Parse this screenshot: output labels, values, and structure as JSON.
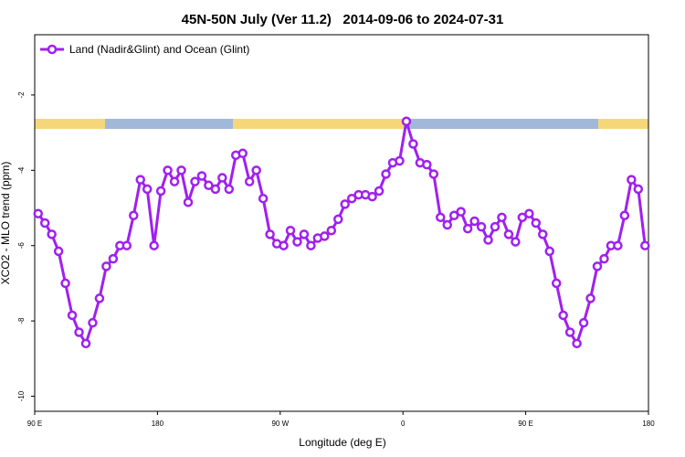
{
  "chart_data": {
    "type": "line",
    "title": "45N-50N July (Ver 11.2)   2014-09-06 to 2024-07-31",
    "x_label": "Longitude (deg E)",
    "y_label": "XCO2 - MLO trend (ppm)",
    "x": [
      92.5,
      97.5,
      102.5,
      107.5,
      112.5,
      117.5,
      122.5,
      127.5,
      132.5,
      137.5,
      142.5,
      147.5,
      152.5,
      157.5,
      162.5,
      167.5,
      172.5,
      177.5,
      182.5,
      187.5,
      192.5,
      197.5,
      202.5,
      207.5,
      212.5,
      217.5,
      222.5,
      227.5,
      232.5,
      237.5,
      242.5,
      247.5,
      252.5,
      257.5,
      262.5,
      267.5,
      272.5,
      277.5,
      282.5,
      287.5,
      292.5,
      297.5,
      302.5,
      307.5,
      312.5,
      317.5,
      322.5,
      327.5,
      332.5,
      337.5,
      342.5,
      347.5,
      352.5,
      357.5,
      362.5,
      367.5,
      372.5,
      377.5,
      382.5,
      387.5,
      392.5,
      397.5,
      402.5,
      407.5,
      412.5,
      417.5,
      422.5,
      427.5,
      432.5,
      437.5,
      442.5,
      447.5,
      452.5,
      457.5,
      462.5,
      467.5,
      472.5,
      477.5,
      482.5,
      487.5,
      492.5,
      497.5,
      502.5,
      507.5,
      512.5,
      517.5,
      522.5,
      527.5,
      532.5,
      537.5
    ],
    "series": [
      {
        "name": "Land (Nadir&Glint) and Ocean (Glint)",
        "color": "#a020f0",
        "values": [
          -5.15,
          -5.4,
          -5.7,
          -6.15,
          -7.0,
          -7.85,
          -8.3,
          -8.6,
          -8.05,
          -7.4,
          -6.55,
          -6.35,
          -6.0,
          -6.0,
          -5.2,
          -4.25,
          -4.5,
          -6.0,
          -4.55,
          -4.0,
          -4.3,
          -4.0,
          -4.85,
          -4.3,
          -4.15,
          -4.4,
          -4.5,
          -4.2,
          -4.5,
          -3.6,
          -3.55,
          -4.3,
          -4.0,
          -4.75,
          -5.7,
          -5.95,
          -6.0,
          -5.6,
          -5.9,
          -5.7,
          -6.0,
          -5.8,
          -5.75,
          -5.6,
          -5.3,
          -4.9,
          -4.75,
          -4.65,
          -4.65,
          -4.7,
          -4.55,
          -4.1,
          -3.8,
          -3.75,
          -2.7,
          -3.3,
          -3.8,
          -3.85,
          -4.1,
          -5.25,
          -5.45,
          -5.2,
          -5.1,
          -5.55,
          -5.35,
          -5.5,
          -5.85,
          -5.5,
          -5.25,
          -5.7,
          -5.9,
          -5.25,
          -5.15,
          -5.4,
          -5.7,
          -6.15,
          -7.0,
          -7.85,
          -8.3,
          -8.6,
          -8.05,
          -7.4,
          -6.55,
          -6.35,
          -6.0,
          -6.0,
          -5.2,
          -4.25,
          -4.5,
          -6.0
        ]
      }
    ],
    "xlim": [
      90,
      540
    ],
    "xticks": [
      {
        "value": 90,
        "label": "90 E"
      },
      180,
      {
        "value": 270,
        "label": "90 W"
      },
      {
        "value": 360,
        "label": "0"
      },
      {
        "value": 450,
        "label": "90 E"
      },
      {
        "value": 540,
        "label": "180"
      }
    ],
    "ylim": [
      -10.4,
      -0.4
    ],
    "yticks": [
      -2,
      -4,
      -6,
      -8,
      -10
    ],
    "legend": "top-left"
  }
}
